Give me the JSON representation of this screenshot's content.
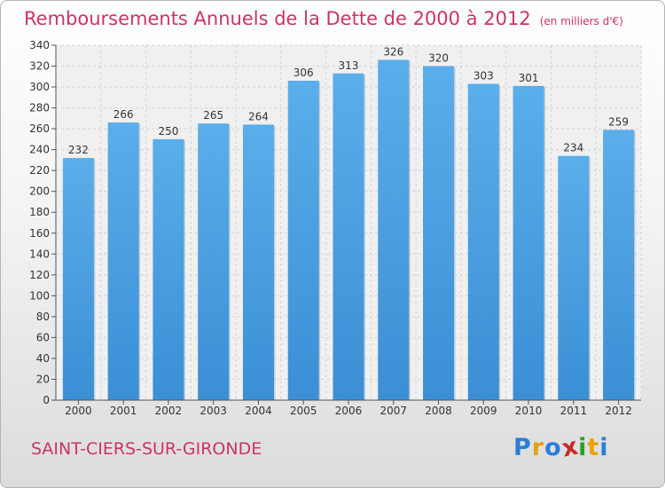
{
  "chart_data": {
    "type": "bar",
    "title": "Remboursements Annuels de la Dette de 2000 à 2012",
    "unit_note": "(en milliers d'€)",
    "categories": [
      "2000",
      "2001",
      "2002",
      "2003",
      "2004",
      "2005",
      "2006",
      "2007",
      "2008",
      "2009",
      "2010",
      "2011",
      "2012"
    ],
    "values": [
      232,
      266,
      250,
      265,
      264,
      306,
      313,
      326,
      320,
      303,
      301,
      234,
      259
    ],
    "ylim": [
      0,
      340
    ],
    "ytick_step": 20,
    "grid": true,
    "bar_color": "#3a8fd6",
    "bar_color_top": "#5aaeea"
  },
  "footer": {
    "commune": "SAINT-CIERS-SUR-GIRONDE",
    "logo_letters": [
      {
        "ch": "P",
        "color": "#2a7fd4"
      },
      {
        "ch": "r",
        "color": "#e8a20c"
      },
      {
        "ch": "o",
        "color": "#2a7fd4"
      },
      {
        "ch": "x",
        "color": "#cc2a2a"
      },
      {
        "ch": "i",
        "color": "#2aa02a"
      },
      {
        "ch": "t",
        "color": "#e8a20c"
      },
      {
        "ch": "i",
        "color": "#2a7fd4"
      }
    ]
  }
}
